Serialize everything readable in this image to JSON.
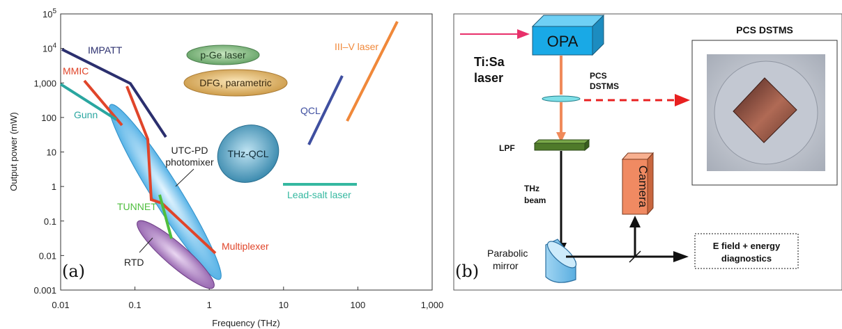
{
  "panel_a": {
    "panel_label": "(a)",
    "xlabel": "Frequency (THz)",
    "ylabel": "Output power (mW)",
    "x_ticks": [
      "0.01",
      "0.1",
      "1",
      "10",
      "100",
      "1,000"
    ],
    "y_ticks": [
      {
        "base": "10",
        "exp": "5"
      },
      {
        "base": "10",
        "exp": "4"
      },
      {
        "base": "1,000",
        "exp": ""
      },
      {
        "base": "100",
        "exp": ""
      },
      {
        "base": "10",
        "exp": ""
      },
      {
        "base": "1",
        "exp": ""
      },
      {
        "base": "0.1",
        "exp": ""
      },
      {
        "base": "0.01",
        "exp": ""
      },
      {
        "base": "0.001",
        "exp": ""
      }
    ],
    "labels": {
      "impatt": "IMPATT",
      "mmic": "MMIC",
      "gunn": "Gunn",
      "pge": "p-Ge laser",
      "dfg": "DFG, parametric",
      "utc1": "UTC-PD",
      "utc2": "photomixer",
      "thzqcl": "THz-QCL",
      "qcl": "QCL",
      "iiiv": "III–V laser",
      "leadsalt": "Lead-salt laser",
      "tunnet": "TUNNET",
      "rtd": "RTD",
      "multiplexer": "Multiplexer"
    },
    "colors": {
      "impatt": "#2b2f6e",
      "mmic": "#e0452a",
      "gunn": "#2aa6a0",
      "pge": "#6aa86b",
      "dfg": "#d9a84a",
      "utc": "#4ab0e6",
      "thzqcl": "#3f93b8",
      "qcl": "#3f4fa0",
      "iiiv": "#f0883a",
      "leadsalt": "#35b8a0",
      "tunnet": "#4fbe3e",
      "rtd": "#9a6bb0",
      "multiplexer": "#e0452a"
    }
  },
  "panel_b": {
    "panel_label": "(b)",
    "opa": "OPA",
    "tisa1": "Ti:Sa",
    "tisa2": "laser",
    "pcs1": "PCS",
    "pcs2": "DSTMS",
    "lpf": "LPF",
    "thz1": "THz",
    "thz2": "beam",
    "camera": "Camera",
    "parabolic1": "Parabolic",
    "parabolic2": "mirror",
    "efield1": "E field + energy",
    "efield2": "diagnostics",
    "photo_title": "PCS  DSTMS"
  }
}
